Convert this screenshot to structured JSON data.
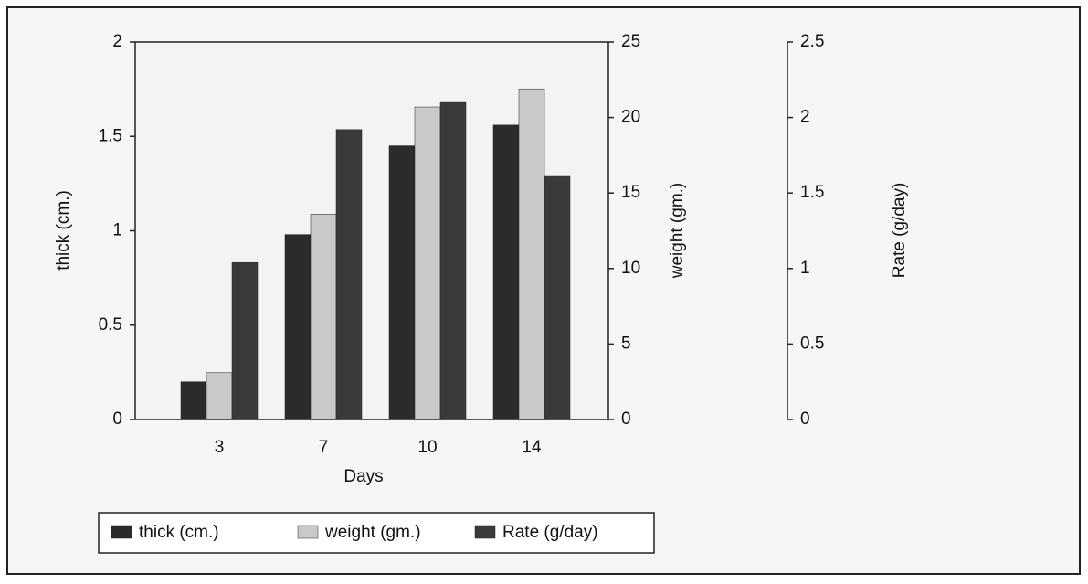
{
  "chart_data": {
    "type": "bar",
    "xlabel": "Days",
    "ylabel": "thick (cm.)",
    "y2label": "weight (gm.)",
    "y3label": "Rate (g/day)",
    "categories": [
      "3",
      "7",
      "10",
      "14"
    ],
    "series": [
      {
        "name": "thick (cm.)",
        "color": "#2b2b2b",
        "values": [
          0.2,
          0.98,
          1.45,
          1.56
        ]
      },
      {
        "name": "weight (gm.)",
        "color": "#c9c9c9",
        "axis": "y2",
        "values": [
          3.1,
          13.6,
          20.7,
          21.9
        ]
      },
      {
        "name": "Rate (g/day)",
        "color": "#3a3a3a",
        "axis": "y3",
        "values": [
          1.04,
          1.92,
          2.1,
          1.61
        ]
      }
    ],
    "ylim": [
      0,
      2
    ],
    "yticks": [
      0,
      0.5,
      1,
      1.5,
      2
    ],
    "y2lim": [
      0,
      25
    ],
    "y2ticks": [
      0,
      5,
      10,
      15,
      20,
      25
    ],
    "y3lim": [
      0,
      2.5
    ],
    "y3ticks": [
      0,
      0.5,
      1,
      1.5,
      2,
      2.5
    ]
  }
}
